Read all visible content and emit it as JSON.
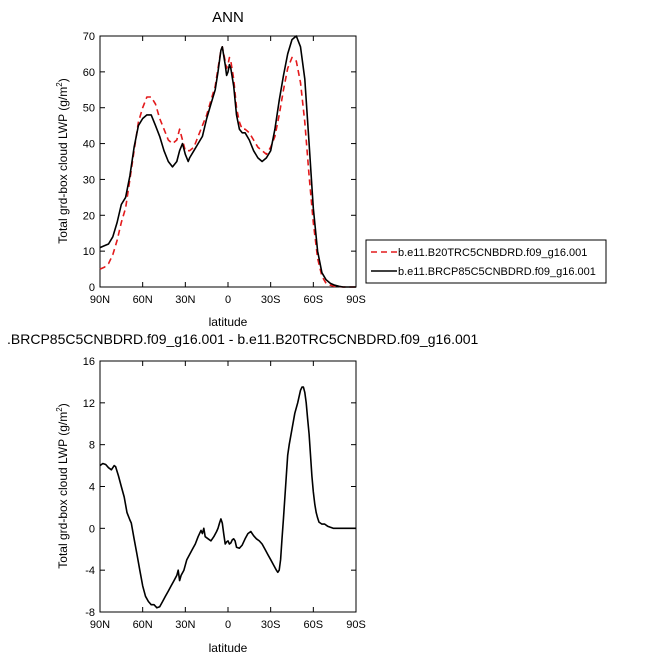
{
  "chart_data": [
    {
      "type": "line",
      "title": "ANN",
      "xlabel": "latitude",
      "ylabel": "Total grd-box cloud LWP",
      "yunit_base": "(g/m",
      "yunit_sup": "2",
      "yunit_close": ")",
      "xlim": [
        90,
        -90
      ],
      "ylim": [
        0,
        70
      ],
      "x_ticks": [
        90,
        60,
        30,
        0,
        -30,
        -60,
        -90
      ],
      "x_tick_labels": [
        "90N",
        "60N",
        "30N",
        "0",
        "30S",
        "60S",
        "90S"
      ],
      "y_ticks": [
        0,
        10,
        20,
        30,
        40,
        50,
        60,
        70
      ],
      "y_tick_labels": [
        "0",
        "10",
        "20",
        "30",
        "40",
        "50",
        "60",
        "70"
      ],
      "grid": false,
      "legend_position": "right",
      "series": [
        {
          "name": "b.e11.B20TRC5CNBDRD.f09_g16.001",
          "color": "#e31a1c",
          "dash": "dashed",
          "points": [
            [
              90,
              5
            ],
            [
              87,
              5.5
            ],
            [
              84,
              6.5
            ],
            [
              81,
              9
            ],
            [
              78,
              13
            ],
            [
              75,
              18
            ],
            [
              72,
              22
            ],
            [
              69,
              30
            ],
            [
              66,
              38
            ],
            [
              63,
              46
            ],
            [
              60,
              50
            ],
            [
              57,
              53
            ],
            [
              54,
              53
            ],
            [
              51,
              51
            ],
            [
              48,
              47
            ],
            [
              45,
              44
            ],
            [
              42,
              41
            ],
            [
              39,
              40
            ],
            [
              36,
              41
            ],
            [
              34,
              44
            ],
            [
              32,
              41
            ],
            [
              30,
              38
            ],
            [
              27,
              38
            ],
            [
              24,
              39
            ],
            [
              21,
              42
            ],
            [
              18,
              45
            ],
            [
              15,
              48
            ],
            [
              12,
              52
            ],
            [
              9,
              56
            ],
            [
              7,
              61
            ],
            [
              5,
              66
            ],
            [
              4,
              67
            ],
            [
              2,
              63
            ],
            [
              1,
              61
            ],
            [
              0,
              62
            ],
            [
              -1,
              64
            ],
            [
              -2,
              63
            ],
            [
              -4,
              58
            ],
            [
              -6,
              50
            ],
            [
              -8,
              46
            ],
            [
              -10,
              44
            ],
            [
              -12,
              44
            ],
            [
              -15,
              43
            ],
            [
              -18,
              41
            ],
            [
              -21,
              39
            ],
            [
              -24,
              38
            ],
            [
              -27,
              37
            ],
            [
              -30,
              39
            ],
            [
              -33,
              42
            ],
            [
              -36,
              48
            ],
            [
              -39,
              55
            ],
            [
              -42,
              61
            ],
            [
              -45,
              64
            ],
            [
              -48,
              63
            ],
            [
              -51,
              57
            ],
            [
              -54,
              46
            ],
            [
              -57,
              31
            ],
            [
              -60,
              18
            ],
            [
              -63,
              8
            ],
            [
              -66,
              3
            ],
            [
              -69,
              1
            ],
            [
              -72,
              0.5
            ],
            [
              -75,
              0.2
            ],
            [
              -78,
              0.1
            ],
            [
              -81,
              0
            ],
            [
              -84,
              0
            ],
            [
              -90,
              0
            ]
          ]
        },
        {
          "name": "b.e11.BRCP85C5CNBDRD.f09_g16.001",
          "color": "#000000",
          "dash": "solid",
          "points": [
            [
              90,
              11
            ],
            [
              87,
              11.5
            ],
            [
              84,
              12
            ],
            [
              81,
              14
            ],
            [
              78,
              18
            ],
            [
              75,
              23
            ],
            [
              72,
              25
            ],
            [
              69,
              31
            ],
            [
              66,
              39
            ],
            [
              63,
              45
            ],
            [
              60,
              47
            ],
            [
              57,
              48
            ],
            [
              54,
              48
            ],
            [
              51,
              45
            ],
            [
              48,
              42
            ],
            [
              45,
              38
            ],
            [
              42,
              35
            ],
            [
              39,
              33.5
            ],
            [
              36,
              35
            ],
            [
              34,
              38
            ],
            [
              32,
              40
            ],
            [
              30,
              37
            ],
            [
              28,
              35
            ],
            [
              27,
              36
            ],
            [
              24,
              38
            ],
            [
              21,
              40
            ],
            [
              18,
              42
            ],
            [
              15,
              47
            ],
            [
              12,
              51
            ],
            [
              9,
              55
            ],
            [
              7,
              60
            ],
            [
              5,
              66
            ],
            [
              4,
              67
            ],
            [
              2,
              62
            ],
            [
              1,
              59
            ],
            [
              0,
              60
            ],
            [
              -1,
              62
            ],
            [
              -2,
              61
            ],
            [
              -4,
              56
            ],
            [
              -6,
              48
            ],
            [
              -8,
              44
            ],
            [
              -10,
              43
            ],
            [
              -12,
              43
            ],
            [
              -15,
              41
            ],
            [
              -18,
              38
            ],
            [
              -21,
              36
            ],
            [
              -24,
              35
            ],
            [
              -27,
              36
            ],
            [
              -30,
              38
            ],
            [
              -33,
              44
            ],
            [
              -36,
              52
            ],
            [
              -39,
              59
            ],
            [
              -42,
              65
            ],
            [
              -45,
              69
            ],
            [
              -48,
              70
            ],
            [
              -51,
              67
            ],
            [
              -54,
              58
            ],
            [
              -57,
              40
            ],
            [
              -60,
              22
            ],
            [
              -63,
              10
            ],
            [
              -66,
              4
            ],
            [
              -69,
              2
            ],
            [
              -72,
              1
            ],
            [
              -75,
              0.5
            ],
            [
              -78,
              0.2
            ],
            [
              -81,
              0
            ],
            [
              -84,
              0
            ],
            [
              -90,
              0
            ]
          ]
        }
      ]
    },
    {
      "type": "line",
      "title": ".BRCP85C5CNBDRD.f09_g16.001 - b.e11.B20TRC5CNBDRD.f09_g16.001",
      "xlabel": "latitude",
      "ylabel": "Total grd-box cloud LWP",
      "yunit_base": "(g/m",
      "yunit_sup": "2",
      "yunit_close": ")",
      "xlim": [
        90,
        -90
      ],
      "ylim": [
        -8,
        16
      ],
      "x_ticks": [
        90,
        60,
        30,
        0,
        -30,
        -60,
        -90
      ],
      "x_tick_labels": [
        "90N",
        "60N",
        "30N",
        "0",
        "30S",
        "60S",
        "90S"
      ],
      "y_ticks": [
        -8,
        -4,
        0,
        4,
        8,
        12,
        16
      ],
      "y_tick_labels": [
        "-8",
        "-4",
        "0",
        "4",
        "8",
        "12",
        "16"
      ],
      "grid": false,
      "series": [
        {
          "color": "#000000",
          "dash": "solid",
          "points": [
            [
              90,
              6
            ],
            [
              88,
              6.2
            ],
            [
              86,
              6.1
            ],
            [
              84,
              5.8
            ],
            [
              82,
              5.6
            ],
            [
              80,
              6
            ],
            [
              79,
              5.9
            ],
            [
              77,
              5
            ],
            [
              75,
              4
            ],
            [
              73,
              3
            ],
            [
              71,
              1.5
            ],
            [
              69,
              0.8
            ],
            [
              68,
              0.5
            ],
            [
              66,
              -1
            ],
            [
              64,
              -2.5
            ],
            [
              62,
              -4
            ],
            [
              60,
              -5.5
            ],
            [
              58,
              -6.5
            ],
            [
              56,
              -7
            ],
            [
              54,
              -7.3
            ],
            [
              52,
              -7.3
            ],
            [
              50,
              -7.6
            ],
            [
              48,
              -7.5
            ],
            [
              46,
              -7
            ],
            [
              44,
              -6.5
            ],
            [
              42,
              -6
            ],
            [
              40,
              -5.5
            ],
            [
              38,
              -5
            ],
            [
              36,
              -4.5
            ],
            [
              35,
              -4
            ],
            [
              34,
              -5
            ],
            [
              33,
              -4.5
            ],
            [
              31,
              -4
            ],
            [
              29,
              -3
            ],
            [
              27,
              -2.5
            ],
            [
              25,
              -2
            ],
            [
              23,
              -1.5
            ],
            [
              21,
              -0.8
            ],
            [
              19,
              -0.2
            ],
            [
              18,
              -0.5
            ],
            [
              17,
              0
            ],
            [
              16,
              -0.8
            ],
            [
              14,
              -1
            ],
            [
              12,
              -1.2
            ],
            [
              10,
              -0.8
            ],
            [
              8,
              -0.3
            ],
            [
              7,
              0
            ],
            [
              6,
              0.5
            ],
            [
              5,
              0.9
            ],
            [
              4,
              0.5
            ],
            [
              3,
              -0.5
            ],
            [
              2,
              -1.5
            ],
            [
              1,
              -1.3
            ],
            [
              0,
              -1.2
            ],
            [
              -1,
              -1.5
            ],
            [
              -2,
              -1.4
            ],
            [
              -3,
              -1.1
            ],
            [
              -4,
              -1
            ],
            [
              -5,
              -1.2
            ],
            [
              -6,
              -1.8
            ],
            [
              -8,
              -1.9
            ],
            [
              -10,
              -1.6
            ],
            [
              -12,
              -1
            ],
            [
              -14,
              -0.5
            ],
            [
              -16,
              -0.3
            ],
            [
              -18,
              -0.7
            ],
            [
              -20,
              -1
            ],
            [
              -22,
              -1.2
            ],
            [
              -24,
              -1.5
            ],
            [
              -26,
              -2
            ],
            [
              -28,
              -2.5
            ],
            [
              -30,
              -3
            ],
            [
              -32,
              -3.5
            ],
            [
              -34,
              -4
            ],
            [
              -35,
              -4.2
            ],
            [
              -36,
              -4
            ],
            [
              -37,
              -3
            ],
            [
              -38,
              -1
            ],
            [
              -39,
              1
            ],
            [
              -40,
              3
            ],
            [
              -41,
              5
            ],
            [
              -42,
              7
            ],
            [
              -43,
              8
            ],
            [
              -45,
              9.5
            ],
            [
              -47,
              11
            ],
            [
              -49,
              12
            ],
            [
              -51,
              13.2
            ],
            [
              -52,
              13.5
            ],
            [
              -53,
              13.5
            ],
            [
              -54,
              13
            ],
            [
              -55,
              12
            ],
            [
              -56,
              10.5
            ],
            [
              -57,
              9
            ],
            [
              -58,
              7
            ],
            [
              -59,
              5
            ],
            [
              -60,
              3.5
            ],
            [
              -61,
              2.3
            ],
            [
              -62,
              1.5
            ],
            [
              -63,
              1
            ],
            [
              -64,
              0.6
            ],
            [
              -66,
              0.4
            ],
            [
              -68,
              0.4
            ],
            [
              -70,
              0.2
            ],
            [
              -72,
              0.1
            ],
            [
              -74,
              0
            ],
            [
              -80,
              0
            ],
            [
              -90,
              0
            ]
          ]
        }
      ]
    }
  ]
}
